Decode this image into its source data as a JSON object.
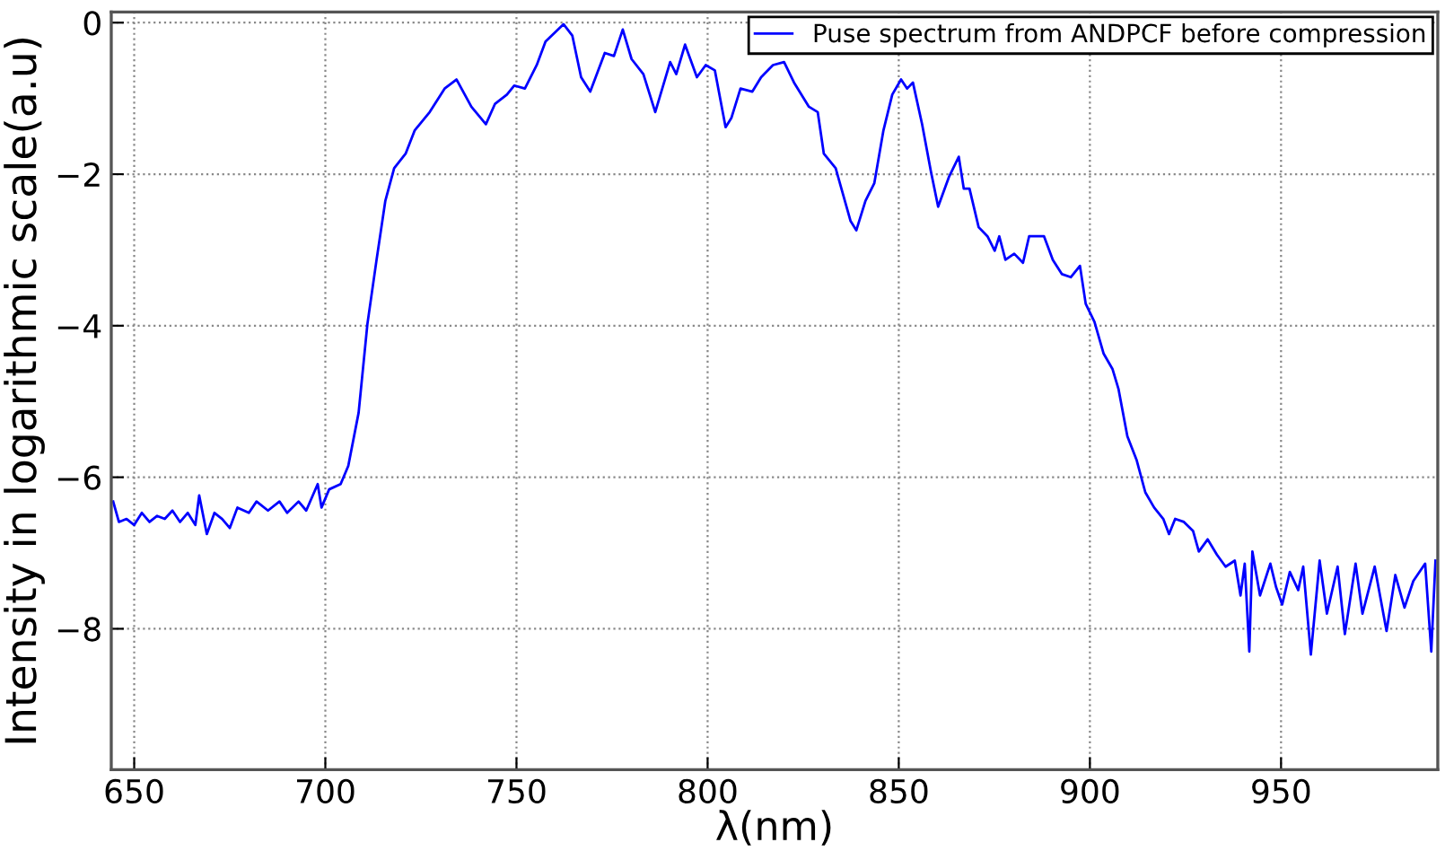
{
  "chart_data": {
    "type": "line",
    "xlabel": "λ(nm)",
    "ylabel": "Intensity in logarithmic scale(a.u)",
    "xlim": [
      644,
      991
    ],
    "ylim": [
      -9.86,
      0.14
    ],
    "xticks": [
      650,
      700,
      750,
      800,
      850,
      900,
      950
    ],
    "yticks": [
      -8,
      -6,
      -4,
      -2,
      0
    ],
    "grid": true,
    "legend": "top right",
    "line_style": "solid",
    "marker": "none",
    "series": [
      {
        "name": "Puse spectrum from ANDPCF before compression",
        "color": "#0000ff",
        "x": [
          644.5,
          646,
          648,
          650,
          652,
          654,
          656,
          658,
          660,
          662,
          664,
          666,
          667,
          669,
          671,
          673,
          675,
          677,
          680,
          682,
          685,
          688,
          690,
          693,
          695,
          698,
          699,
          701,
          704,
          706,
          708.7,
          711,
          713.4,
          715.7,
          718,
          721,
          723.4,
          727.3,
          731.2,
          734.3,
          738.2,
          742,
          744.4,
          747.5,
          749.4,
          752.2,
          755.3,
          757.6,
          762.3,
          764.6,
          766.9,
          769.3,
          773.1,
          775.5,
          777.8,
          780.1,
          783.2,
          786.3,
          790.2,
          791.8,
          794.1,
          797.2,
          799.5,
          801.9,
          804.7,
          806.2,
          808.6,
          811.7,
          814,
          817.1,
          820,
          822.6,
          826.5,
          828.8,
          830.4,
          833.5,
          835,
          837.4,
          838.9,
          841.3,
          843.6,
          846,
          848.3,
          850.6,
          852.2,
          853.7,
          856.1,
          858.4,
          860.3,
          863.1,
          865.7,
          867,
          868.5,
          870.9,
          873.2,
          875.1,
          876.3,
          877.9,
          880.2,
          882.5,
          884.1,
          886.4,
          888,
          890.3,
          892.7,
          895,
          897.4,
          898.9,
          901.2,
          903.6,
          905.9,
          907.5,
          909.8,
          912.2,
          914.5,
          916.8,
          919.2,
          920.7,
          922.3,
          924.6,
          927,
          928.5,
          930.8,
          933.2,
          935.5,
          937.9,
          939.4,
          940.5,
          941.7,
          942.5,
          944.5,
          947.2,
          948.7,
          950.3,
          952.3,
          954.5,
          955.8,
          957.8,
          960.1,
          962,
          964.8,
          966.7,
          969.5,
          971.3,
          974.5,
          977.6,
          979.9,
          982.3,
          984.6,
          987.7,
          989.3,
          990.4
        ],
        "values": [
          -6.32,
          -6.59,
          -6.55,
          -6.63,
          -6.47,
          -6.59,
          -6.51,
          -6.55,
          -6.44,
          -6.59,
          -6.47,
          -6.63,
          -6.24,
          -6.75,
          -6.47,
          -6.55,
          -6.67,
          -6.4,
          -6.47,
          -6.32,
          -6.44,
          -6.32,
          -6.47,
          -6.32,
          -6.44,
          -6.09,
          -6.4,
          -6.16,
          -6.09,
          -5.85,
          -5.15,
          -3.98,
          -3.13,
          -2.35,
          -1.92,
          -1.73,
          -1.42,
          -1.18,
          -0.87,
          -0.75,
          -1.11,
          -1.34,
          -1.07,
          -0.95,
          -0.83,
          -0.87,
          -0.56,
          -0.25,
          -0.02,
          -0.17,
          -0.72,
          -0.91,
          -0.4,
          -0.44,
          -0.09,
          -0.48,
          -0.68,
          -1.18,
          -0.52,
          -0.68,
          -0.29,
          -0.72,
          -0.56,
          -0.63,
          -1.38,
          -1.26,
          -0.87,
          -0.91,
          -0.72,
          -0.56,
          -0.52,
          -0.79,
          -1.11,
          -1.18,
          -1.73,
          -1.92,
          -2.19,
          -2.62,
          -2.74,
          -2.35,
          -2.12,
          -1.42,
          -0.95,
          -0.75,
          -0.87,
          -0.79,
          -1.34,
          -1.96,
          -2.43,
          -2.04,
          -1.77,
          -2.19,
          -2.19,
          -2.7,
          -2.82,
          -3.01,
          -2.82,
          -3.13,
          -3.05,
          -3.17,
          -2.82,
          -2.82,
          -2.82,
          -3.13,
          -3.32,
          -3.36,
          -3.21,
          -3.71,
          -3.95,
          -4.37,
          -4.57,
          -4.84,
          -5.46,
          -5.77,
          -6.2,
          -6.4,
          -6.55,
          -6.75,
          -6.55,
          -6.59,
          -6.71,
          -6.98,
          -6.82,
          -7.02,
          -7.18,
          -7.1,
          -7.56,
          -7.14,
          -8.3,
          -6.98,
          -7.56,
          -7.14,
          -7.45,
          -7.68,
          -7.25,
          -7.49,
          -7.18,
          -8.34,
          -7.1,
          -7.8,
          -7.18,
          -8.07,
          -7.14,
          -7.8,
          -7.18,
          -8.03,
          -7.29,
          -7.72,
          -7.37,
          -7.14,
          -8.3,
          -7.1
        ]
      }
    ]
  }
}
